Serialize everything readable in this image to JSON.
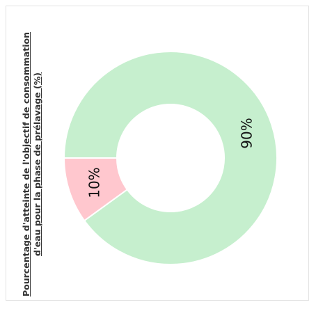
{
  "chart_data": {
    "type": "pie",
    "title_lines": [
      "Pourcentage d'atteinte de l'objectif de consommation",
      "d'eau pour la phase de prélavage (%)"
    ],
    "slices": [
      {
        "label": "90%",
        "value": 90,
        "color": "#c6efce"
      },
      {
        "label": "10%",
        "value": 10,
        "color": "#ffc7ce"
      }
    ],
    "donut": true,
    "rotation_text": "vertical"
  }
}
